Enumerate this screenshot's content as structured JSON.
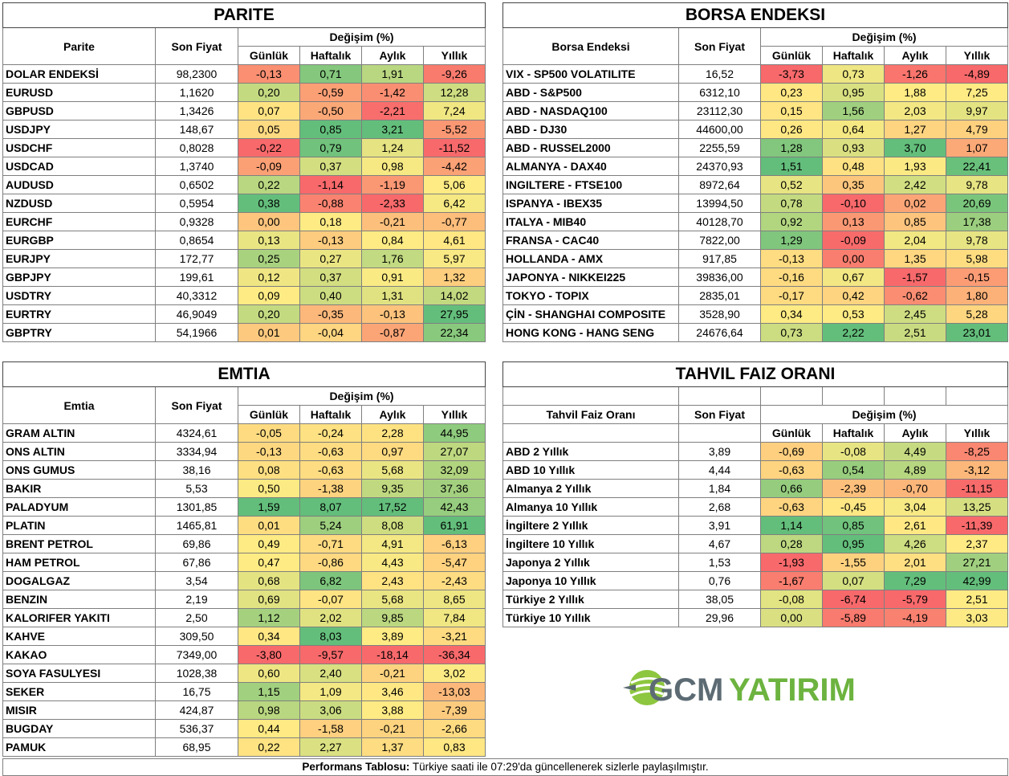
{
  "colors": {
    "red": "#f8696b",
    "green": "#63be7b",
    "yellow": "#ffeb84"
  },
  "headers": {
    "son_fiyat": "Son Fiyat",
    "degisim": "Değişim (%)",
    "cols": [
      "Günlük",
      "Haftalık",
      "Aylık",
      "Yıllık"
    ]
  },
  "parite": {
    "title": "PARITE",
    "label": "Parite",
    "rows": [
      [
        "DOLAR ENDEKSİ",
        "98,2300",
        "-0,13",
        "0,71",
        "1,91",
        "-9,26"
      ],
      [
        "EURUSD",
        "1,1620",
        "0,20",
        "-0,59",
        "-1,42",
        "12,28"
      ],
      [
        "GBPUSD",
        "1,3426",
        "0,07",
        "-0,50",
        "-2,21",
        "7,24"
      ],
      [
        "USDJPY",
        "148,67",
        "0,05",
        "0,85",
        "3,21",
        "-5,52"
      ],
      [
        "USDCHF",
        "0,8028",
        "-0,22",
        "0,79",
        "1,24",
        "-11,52"
      ],
      [
        "USDCAD",
        "1,3740",
        "-0,09",
        "0,37",
        "0,98",
        "-4,42"
      ],
      [
        "AUDUSD",
        "0,6502",
        "0,22",
        "-1,14",
        "-1,19",
        "5,06"
      ],
      [
        "NZDUSD",
        "0,5954",
        "0,38",
        "-0,88",
        "-2,33",
        "6,42"
      ],
      [
        "EURCHF",
        "0,9328",
        "0,00",
        "0,18",
        "-0,21",
        "-0,77"
      ],
      [
        "EURGBP",
        "0,8654",
        "0,13",
        "-0,13",
        "0,84",
        "4,61"
      ],
      [
        "EURJPY",
        "172,77",
        "0,25",
        "0,27",
        "1,76",
        "5,97"
      ],
      [
        "GBPJPY",
        "199,61",
        "0,12",
        "0,37",
        "0,91",
        "1,32"
      ],
      [
        "USDTRY",
        "40,3312",
        "0,09",
        "0,40",
        "1,31",
        "14,02"
      ],
      [
        "EURTRY",
        "46,9049",
        "0,20",
        "-0,35",
        "-0,13",
        "27,95"
      ],
      [
        "GBPTRY",
        "54,1966",
        "0,01",
        "-0,04",
        "-0,87",
        "22,34"
      ]
    ]
  },
  "borsa": {
    "title": "BORSA ENDEKSI",
    "label": "Borsa Endeksi",
    "rows": [
      [
        "VIX  - SP500 VOLATILITE",
        "16,52",
        "-3,73",
        "0,73",
        "-1,26",
        "-4,89"
      ],
      [
        "ABD - S&P500",
        "6312,10",
        "0,23",
        "0,95",
        "1,88",
        "7,25"
      ],
      [
        "ABD - NASDAQ100",
        "23112,30",
        "0,15",
        "1,56",
        "2,03",
        "9,97"
      ],
      [
        "ABD - DJ30",
        "44600,00",
        "0,26",
        "0,64",
        "1,27",
        "4,79"
      ],
      [
        "ABD - RUSSEL2000",
        "2255,59",
        "1,28",
        "0,93",
        "3,70",
        "1,07"
      ],
      [
        "ALMANYA - DAX40",
        "24370,93",
        "1,51",
        "0,48",
        "1,93",
        "22,41"
      ],
      [
        "INGILTERE - FTSE100",
        "8972,64",
        "0,52",
        "0,35",
        "2,42",
        "9,78"
      ],
      [
        "ISPANYA - IBEX35",
        "13994,50",
        "0,78",
        "-0,10",
        "0,02",
        "20,69"
      ],
      [
        "ITALYA - MIB40",
        "40128,70",
        "0,92",
        "0,13",
        "0,85",
        "17,38"
      ],
      [
        "FRANSA - CAC40",
        "7822,00",
        "1,29",
        "-0,09",
        "2,04",
        "9,78"
      ],
      [
        "HOLLANDA - AMX",
        "917,85",
        "-0,13",
        "0,00",
        "1,35",
        "5,98"
      ],
      [
        "JAPONYA - NIKKEI225",
        "39836,00",
        "-0,16",
        "0,67",
        "-1,57",
        "-0,15"
      ],
      [
        "TOKYO - TOPIX",
        "2835,01",
        "-0,17",
        "0,42",
        "-0,62",
        "1,80"
      ],
      [
        "ÇİN - SHANGHAI COMPOSITE",
        "3528,90",
        "0,34",
        "0,53",
        "2,45",
        "5,28"
      ],
      [
        "HONG KONG - HANG SENG",
        "24676,64",
        "0,73",
        "2,22",
        "2,51",
        "23,01"
      ]
    ]
  },
  "emtia": {
    "title": "EMTIA",
    "label": "Emtia",
    "rows": [
      [
        "GRAM ALTIN",
        "4324,61",
        "-0,05",
        "-0,24",
        "2,28",
        "44,95"
      ],
      [
        "ONS ALTIN",
        "3334,94",
        "-0,13",
        "-0,63",
        "0,97",
        "27,07"
      ],
      [
        "ONS GUMUS",
        "38,16",
        "0,08",
        "-0,63",
        "5,68",
        "32,09"
      ],
      [
        "BAKIR",
        "5,53",
        "0,50",
        "-1,38",
        "9,35",
        "37,36"
      ],
      [
        "PALADYUM",
        "1301,85",
        "1,59",
        "8,07",
        "17,52",
        "42,43"
      ],
      [
        "PLATIN",
        "1465,81",
        "0,01",
        "5,24",
        "8,08",
        "61,91"
      ],
      [
        "BRENT PETROL",
        "69,86",
        "0,49",
        "-0,71",
        "4,91",
        "-6,13"
      ],
      [
        "HAM PETROL",
        "67,86",
        "0,47",
        "-0,86",
        "4,43",
        "-5,47"
      ],
      [
        "DOGALGAZ",
        "3,54",
        "0,68",
        "6,82",
        "2,43",
        "-2,43"
      ],
      [
        "BENZIN",
        "2,19",
        "0,69",
        "-0,07",
        "5,68",
        "8,65"
      ],
      [
        "KALORIFER YAKITI",
        "2,50",
        "1,12",
        "2,02",
        "9,85",
        "7,84"
      ],
      [
        "KAHVE",
        "309,50",
        "0,34",
        "8,03",
        "3,89",
        "-3,21"
      ],
      [
        "KAKAO",
        "7349,00",
        "-3,80",
        "-9,57",
        "-18,14",
        "-36,34"
      ],
      [
        "SOYA FASULYESI",
        "1028,38",
        "0,60",
        "2,40",
        "-0,21",
        "3,02"
      ],
      [
        "SEKER",
        "16,75",
        "1,15",
        "1,09",
        "3,46",
        "-13,03"
      ],
      [
        "MISIR",
        "424,87",
        "0,98",
        "3,06",
        "3,88",
        "-7,39"
      ],
      [
        "BUGDAY",
        "536,37",
        "0,44",
        "-1,58",
        "-0,21",
        "-2,66"
      ],
      [
        "PAMUK",
        "68,95",
        "0,22",
        "2,27",
        "1,37",
        "0,83"
      ]
    ]
  },
  "tahvil": {
    "title": "TAHVIL FAIZ ORANI",
    "label": "Tahvil Faiz Oranı",
    "rows": [
      [
        "ABD 2 Yıllık",
        "3,89",
        "-0,69",
        "-0,08",
        "4,49",
        "-8,25"
      ],
      [
        "ABD 10 Yıllık",
        "4,44",
        "-0,63",
        "0,54",
        "4,89",
        "-3,12"
      ],
      [
        "Almanya 2 Yıllık",
        "1,84",
        "0,66",
        "-2,39",
        "-0,70",
        "-11,15"
      ],
      [
        "Almanya 10 Yıllık",
        "2,68",
        "-0,63",
        "-0,45",
        "3,04",
        "13,25"
      ],
      [
        "İngiltere 2 Yıllık",
        "3,91",
        "1,14",
        "0,85",
        "2,61",
        "-11,39"
      ],
      [
        "İngiltere 10 Yıllık",
        "4,67",
        "0,28",
        "0,95",
        "4,26",
        "2,37"
      ],
      [
        "Japonya 2 Yıllık",
        "1,53",
        "-1,93",
        "-1,55",
        "2,01",
        "27,21"
      ],
      [
        "Japonya 10 Yıllık",
        "0,76",
        "-1,67",
        "0,07",
        "7,29",
        "42,99"
      ],
      [
        "Türkiye 2 Yıllık",
        "38,05",
        "-0,08",
        "-6,74",
        "-5,79",
        "2,51"
      ],
      [
        "Türkiye 10 Yıllık",
        "29,96",
        "0,00",
        "-5,89",
        "-4,19",
        "3,03"
      ]
    ]
  },
  "logo": {
    "part1": "GCM",
    "part2": "YATIRIM"
  },
  "footer": {
    "bold": "Performans Tablosu:",
    "text": " Türkiye saati ile 07:29'da güncellenerek sizlerle paylaşılmıştır."
  }
}
